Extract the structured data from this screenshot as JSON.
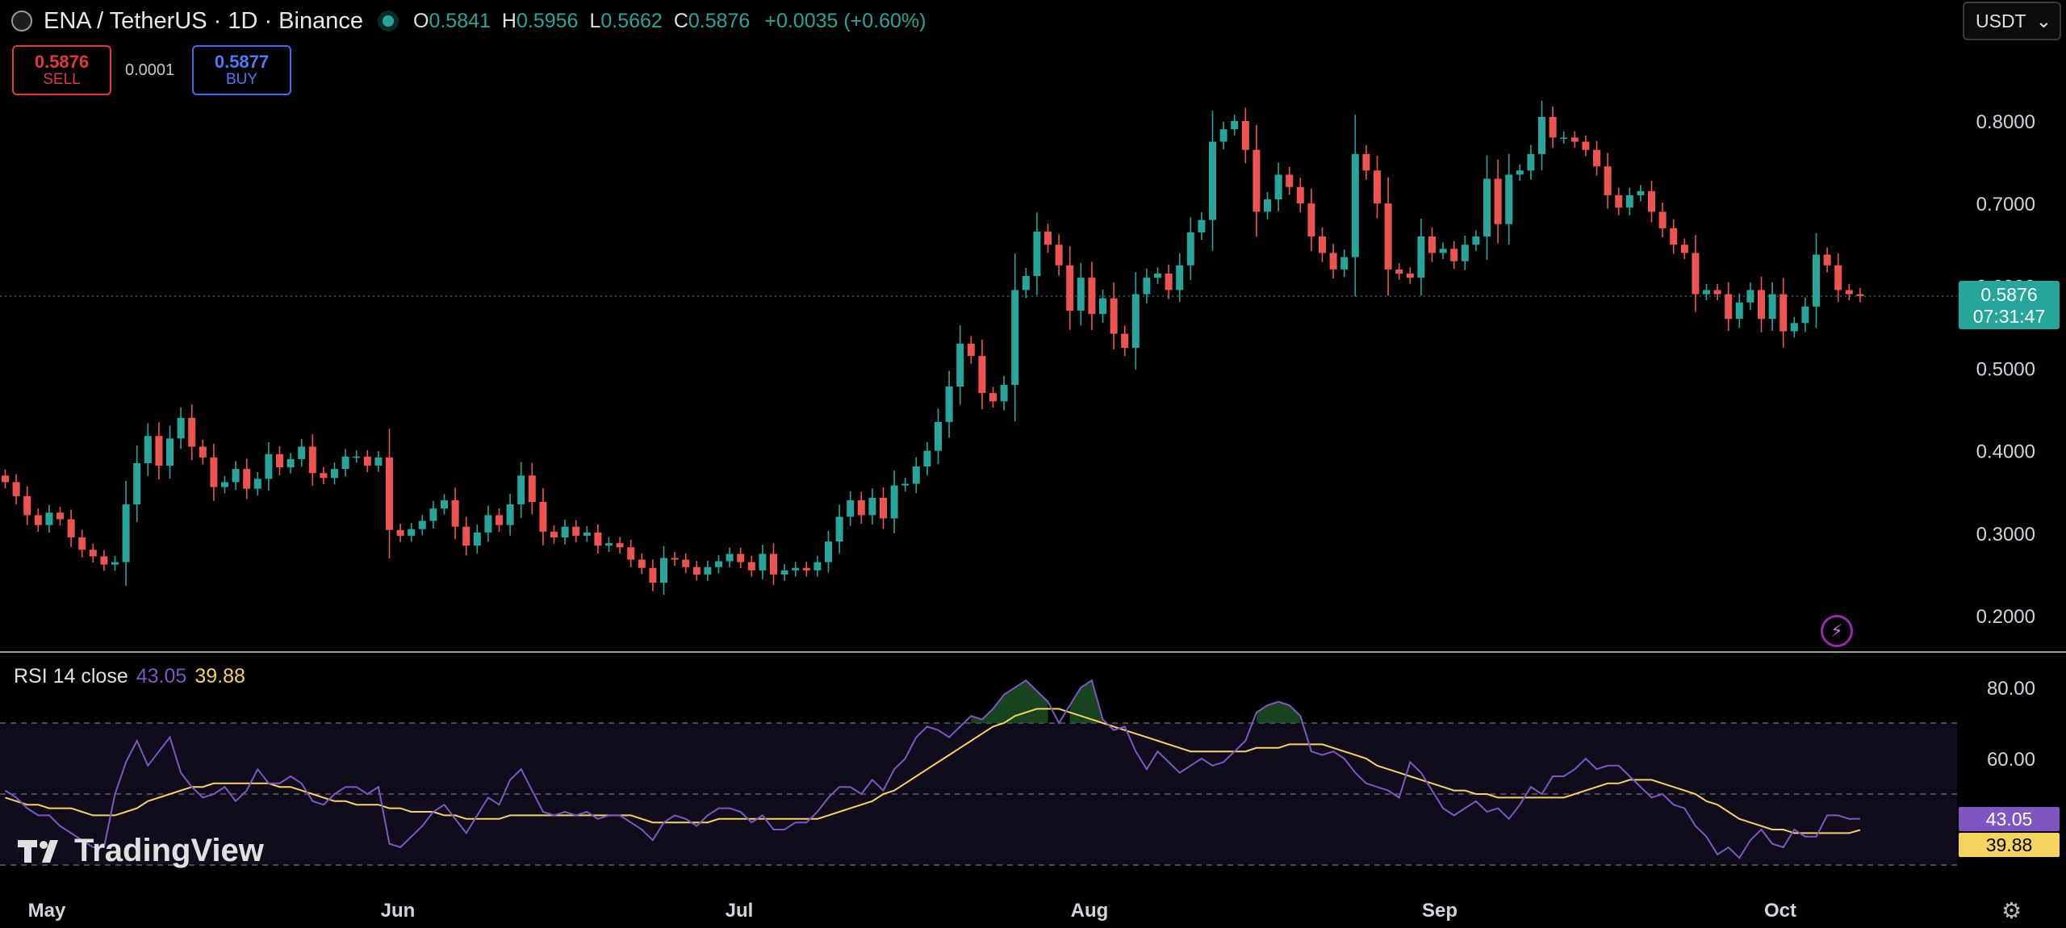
{
  "header": {
    "symbol_title": "ENA / TetherUS · 1D · Binance",
    "open_key": "O",
    "open": "0.5841",
    "high_key": "H",
    "high": "0.5956",
    "low_key": "L",
    "low": "0.5662",
    "close_key": "C",
    "close": "0.5876",
    "change": "+0.0035 (+0.60%)"
  },
  "trade": {
    "sell_price": "0.5876",
    "sell_label": "SELL",
    "spread": "0.0001",
    "buy_price": "0.5877",
    "buy_label": "BUY"
  },
  "currency": {
    "selected": "USDT"
  },
  "last_price": {
    "value": "0.5876",
    "countdown": "07:31:47"
  },
  "rsi": {
    "title": "RSI 14 close",
    "value": "43.05",
    "ma_value": "39.88"
  },
  "brand": {
    "name": "TradingView"
  },
  "colors": {
    "up": "#26a69a",
    "down": "#ef5350",
    "rsi": "#7e57c2",
    "rsi_ma": "#f4d35e",
    "background": "#000000"
  },
  "icons": [
    "lightning-icon",
    "gear-icon",
    "chevron-down-icon"
  ],
  "chart_data": [
    {
      "type": "candlestick",
      "title": "ENA / TetherUS · 1D · Binance",
      "y_ticks": [
        "0.8000",
        "0.7000",
        "0.6000",
        "0.5000",
        "0.4000",
        "0.3000",
        "0.2000"
      ],
      "x_ticks": [
        "May",
        "Jun",
        "Jul",
        "Aug",
        "Sep",
        "Oct"
      ],
      "close_start": 0.37,
      "closes": [
        0.362,
        0.345,
        0.322,
        0.31,
        0.325,
        0.317,
        0.295,
        0.28,
        0.272,
        0.262,
        0.265,
        0.335,
        0.385,
        0.418,
        0.382,
        0.415,
        0.44,
        0.405,
        0.392,
        0.356,
        0.362,
        0.378,
        0.354,
        0.366,
        0.396,
        0.38,
        0.39,
        0.405,
        0.373,
        0.367,
        0.378,
        0.393,
        0.393,
        0.382,
        0.392,
        0.304,
        0.297,
        0.305,
        0.315,
        0.33,
        0.34,
        0.308,
        0.285,
        0.301,
        0.322,
        0.31,
        0.335,
        0.37,
        0.338,
        0.302,
        0.295,
        0.308,
        0.297,
        0.301,
        0.285,
        0.288,
        0.283,
        0.268,
        0.258,
        0.24,
        0.27,
        0.268,
        0.259,
        0.25,
        0.259,
        0.266,
        0.275,
        0.265,
        0.255,
        0.275,
        0.25,
        0.255,
        0.258,
        0.255,
        0.265,
        0.29,
        0.32,
        0.34,
        0.322,
        0.343,
        0.318,
        0.358,
        0.36,
        0.381,
        0.4,
        0.435,
        0.478,
        0.53,
        0.515,
        0.47,
        0.46,
        0.48,
        0.595,
        0.612,
        0.666,
        0.65,
        0.625,
        0.57,
        0.61,
        0.566,
        0.585,
        0.542,
        0.525,
        0.59,
        0.61,
        0.615,
        0.595,
        0.625,
        0.665,
        0.68,
        0.775,
        0.79,
        0.8,
        0.765,
        0.69,
        0.705,
        0.735,
        0.72,
        0.7,
        0.66,
        0.64,
        0.62,
        0.635,
        0.76,
        0.74,
        0.7,
        0.62,
        0.615,
        0.61,
        0.66,
        0.64,
        0.645,
        0.63,
        0.65,
        0.66,
        0.73,
        0.675,
        0.735,
        0.74,
        0.76,
        0.805,
        0.78,
        0.78,
        0.775,
        0.765,
        0.745,
        0.71,
        0.695,
        0.71,
        0.715,
        0.69,
        0.67,
        0.65,
        0.64,
        0.59,
        0.595,
        0.59,
        0.56,
        0.58,
        0.595,
        0.56,
        0.59,
        0.545,
        0.555,
        0.575,
        0.638,
        0.625,
        0.595,
        0.59,
        0.5876
      ]
    },
    {
      "type": "line",
      "title": "RSI 14 close",
      "y_ticks": [
        "80.00",
        "60.00"
      ],
      "ylim": [
        14,
        91
      ],
      "bands": [
        70,
        50,
        30
      ],
      "series": [
        {
          "name": "RSI",
          "values": [
            51,
            49,
            46,
            44,
            44,
            41,
            39,
            37,
            35,
            35,
            50,
            59,
            65,
            58,
            62,
            66,
            56,
            52,
            49,
            50,
            52,
            48,
            51,
            57,
            53,
            53,
            55,
            53,
            48,
            47,
            50,
            52,
            52,
            50,
            52,
            36,
            35,
            38,
            41,
            45,
            47,
            43,
            39,
            44,
            49,
            47,
            54,
            57,
            51,
            45,
            44,
            45,
            44,
            45,
            43,
            44,
            44,
            42,
            40,
            37,
            42,
            44,
            43,
            41,
            44,
            46,
            46,
            45,
            42,
            44,
            40,
            40,
            42,
            42,
            45,
            49,
            52,
            52,
            50,
            54,
            51,
            57,
            60,
            66,
            69,
            68,
            66,
            69,
            72,
            71,
            74,
            78,
            80,
            82,
            79,
            76,
            70,
            75,
            80,
            82,
            71,
            68,
            69,
            62,
            57,
            62,
            59,
            56,
            58,
            60,
            58,
            59,
            62,
            65,
            73,
            75,
            76,
            75,
            72,
            62,
            61,
            62,
            60,
            56,
            53,
            52,
            51,
            49,
            59,
            56,
            51,
            46,
            44,
            46,
            48,
            45,
            46,
            43,
            47,
            52,
            50,
            55,
            55,
            57,
            60,
            57,
            58,
            58,
            55,
            52,
            49,
            50,
            47,
            46,
            41,
            38,
            33,
            35,
            32,
            37,
            40,
            36,
            35,
            40,
            38,
            38,
            44,
            44,
            43,
            43.05
          ]
        },
        {
          "name": "RSI MA",
          "values": [
            49,
            48,
            47,
            47,
            46,
            46,
            46,
            45,
            44,
            44,
            44,
            45,
            46,
            48,
            49,
            50,
            51,
            52,
            52,
            53,
            53,
            53,
            53,
            53,
            53,
            52,
            52,
            51,
            50,
            49,
            48,
            48,
            47,
            47,
            47,
            46,
            46,
            45,
            45,
            45,
            44,
            44,
            43,
            43,
            43,
            43,
            44,
            44,
            44,
            44,
            44,
            44,
            44,
            44,
            44,
            44,
            44,
            44,
            43,
            42,
            42,
            42,
            42,
            42,
            42,
            43,
            43,
            43,
            43,
            43,
            43,
            43,
            43,
            43,
            43,
            44,
            45,
            46,
            47,
            48,
            50,
            51,
            53,
            55,
            57,
            59,
            61,
            63,
            65,
            67,
            69,
            70,
            72,
            73,
            74,
            74,
            74,
            73,
            72,
            71,
            70,
            69,
            68,
            67,
            66,
            65,
            64,
            63,
            62,
            62,
            62,
            62,
            62,
            62,
            63,
            63,
            63,
            64,
            64,
            64,
            64,
            63,
            62,
            61,
            60,
            58,
            57,
            56,
            55,
            54,
            53,
            52,
            51,
            51,
            50,
            50,
            49,
            49,
            49,
            49,
            49,
            49,
            49,
            50,
            51,
            52,
            53,
            53,
            54,
            54,
            54,
            53,
            52,
            51,
            50,
            48,
            47,
            45,
            43,
            42,
            41,
            40,
            40,
            39,
            39,
            39,
            39,
            39,
            39,
            39.88
          ]
        }
      ]
    }
  ]
}
